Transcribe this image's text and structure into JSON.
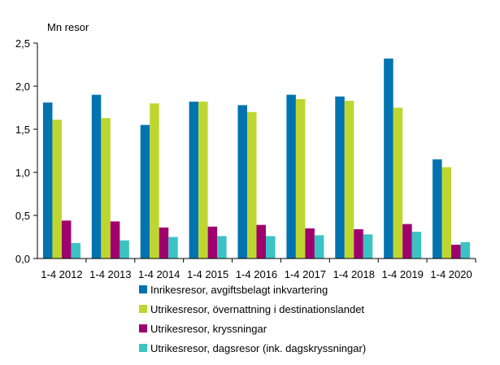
{
  "chart_data": {
    "type": "bar",
    "title": "",
    "ylabel": "Mn resor",
    "xlabel": "",
    "ylim": [
      0,
      2.5
    ],
    "yticks": [
      "0,0",
      "0,5",
      "1,0",
      "1,5",
      "2,0",
      "2,5"
    ],
    "grid": false,
    "legend_position": "bottom",
    "categories": [
      "1-4 2012",
      "1-4 2013",
      "1-4 2014",
      "1-4 2015",
      "1-4 2016",
      "1-4 2017",
      "1-4 2018",
      "1-4 2019",
      "1-4 2020"
    ],
    "series": [
      {
        "name": "Inrikesresor, avgiftsbelagt inkvartering",
        "color": "#0073b0",
        "values": [
          1.81,
          1.9,
          1.55,
          1.82,
          1.78,
          1.9,
          1.88,
          2.32,
          1.15
        ]
      },
      {
        "name": "Utrikesresor, övernattning i destinationslandet",
        "color": "#bed630",
        "values": [
          1.61,
          1.63,
          1.8,
          1.82,
          1.7,
          1.85,
          1.83,
          1.75,
          1.06
        ]
      },
      {
        "name": "Utrikesresor, kryssningar",
        "color": "#a0006e",
        "values": [
          0.44,
          0.43,
          0.36,
          0.37,
          0.39,
          0.35,
          0.34,
          0.4,
          0.16
        ]
      },
      {
        "name": "Utrikesresor, dagsresor (ink. dagskryssningar)",
        "color": "#3bc3c3",
        "values": [
          0.18,
          0.21,
          0.25,
          0.26,
          0.26,
          0.27,
          0.28,
          0.31,
          0.19
        ]
      }
    ]
  }
}
